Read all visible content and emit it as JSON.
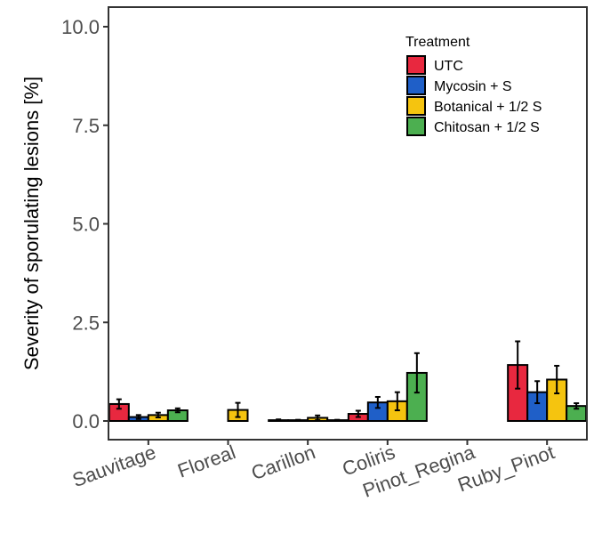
{
  "chart_data": {
    "type": "bar",
    "ylabel": "Severity of sporulating lesions [%]",
    "xlabel": "",
    "ylim": [
      0,
      10
    ],
    "yticks": [
      "0.0",
      "2.5",
      "5.0",
      "7.5",
      "10.0"
    ],
    "yticks_values": [
      0,
      2.5,
      5,
      7.5,
      10
    ],
    "grid": false,
    "legend": {
      "title": "Treatment",
      "position": "top-right"
    },
    "categories": [
      "Sauvitage",
      "Floreal",
      "Carillon",
      "Coliris",
      "Pinot_Regina",
      "Ruby_Pinot"
    ],
    "series": [
      {
        "name": "UTC",
        "color": "#e8283f",
        "values": [
          0.43,
          0.0,
          0.02,
          0.18,
          0.0,
          1.42
        ],
        "errors": [
          0.12,
          0.0,
          0.02,
          0.08,
          0.0,
          0.6
        ]
      },
      {
        "name": "Mycosin + S",
        "color": "#1f5fc8",
        "values": [
          0.1,
          0.0,
          0.02,
          0.47,
          0.0,
          0.73
        ],
        "errors": [
          0.05,
          0.0,
          0.01,
          0.14,
          0.0,
          0.28
        ]
      },
      {
        "name": "Botanical + 1/2 S",
        "color": "#f5c40f",
        "values": [
          0.15,
          0.28,
          0.08,
          0.5,
          0.0,
          1.05
        ],
        "errors": [
          0.06,
          0.18,
          0.06,
          0.23,
          0.0,
          0.35
        ]
      },
      {
        "name": "Chitosan + 1/2 S",
        "color": "#4caf50",
        "values": [
          0.27,
          0.0,
          0.02,
          1.22,
          0.0,
          0.38
        ],
        "errors": [
          0.05,
          0.0,
          0.01,
          0.5,
          0.0,
          0.07
        ]
      }
    ]
  }
}
